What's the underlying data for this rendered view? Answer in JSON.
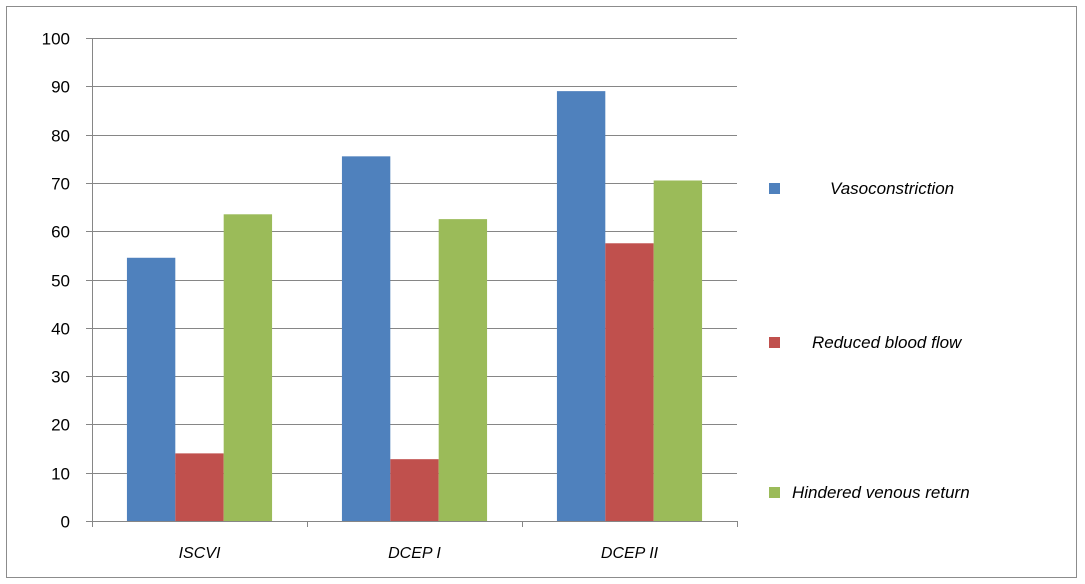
{
  "chart_data": {
    "type": "bar",
    "categories": [
      "ISCVI",
      "DCEP I",
      "DCEP II"
    ],
    "series": [
      {
        "name": "Vasoconstriction",
        "values": [
          54.5,
          75.5,
          89
        ],
        "color": "#4f81bd"
      },
      {
        "name": "Reduced blood flow",
        "values": [
          14,
          12.8,
          57.5
        ],
        "color": "#c0504d"
      },
      {
        "name": "Hindered venous return",
        "values": [
          63.5,
          62.5,
          70.5
        ],
        "color": "#9bbb59"
      }
    ],
    "ylim": [
      0,
      100
    ],
    "yticks": [
      "0",
      "10",
      "20",
      "30",
      "40",
      "50",
      "60",
      "70",
      "80",
      "90",
      "100"
    ],
    "grid": true,
    "legend_position": "right",
    "title": "",
    "xlabel": "",
    "ylabel": ""
  }
}
